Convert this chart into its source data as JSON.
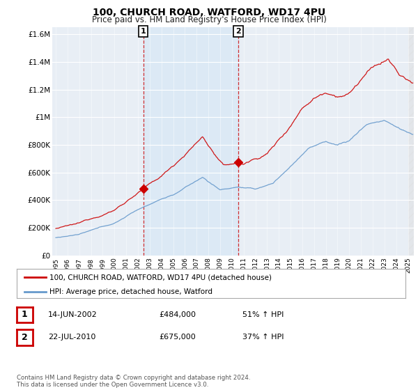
{
  "title": "100, CHURCH ROAD, WATFORD, WD17 4PU",
  "subtitle": "Price paid vs. HM Land Registry's House Price Index (HPI)",
  "ylabel_ticks": [
    "£0",
    "£200K",
    "£400K",
    "£600K",
    "£800K",
    "£1M",
    "£1.2M",
    "£1.4M",
    "£1.6M"
  ],
  "ytick_values": [
    0,
    200000,
    400000,
    600000,
    800000,
    1000000,
    1200000,
    1400000,
    1600000
  ],
  "ylim": [
    0,
    1650000
  ],
  "xlim_start": 1994.7,
  "xlim_end": 2025.5,
  "sale1_x": 2002.45,
  "sale1_y": 484000,
  "sale2_x": 2010.55,
  "sale2_y": 675000,
  "vline1_x": 2002.45,
  "vline2_x": 2010.55,
  "shade_color": "#dce9f5",
  "red_color": "#cc0000",
  "blue_color": "#6699cc",
  "grid_color": "#ffffff",
  "plot_bg_color": "#e8eef5",
  "legend_label1": "100, CHURCH ROAD, WATFORD, WD17 4PU (detached house)",
  "legend_label2": "HPI: Average price, detached house, Watford",
  "table_row1": [
    "1",
    "14-JUN-2002",
    "£484,000",
    "51% ↑ HPI"
  ],
  "table_row2": [
    "2",
    "22-JUL-2010",
    "£675,000",
    "37% ↑ HPI"
  ],
  "footer": "Contains HM Land Registry data © Crown copyright and database right 2024.\nThis data is licensed under the Open Government Licence v3.0.",
  "background_color": "#ffffff"
}
